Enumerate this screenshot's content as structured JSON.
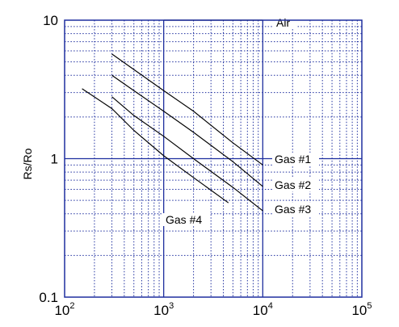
{
  "chart_data": {
    "type": "line",
    "title": "",
    "xlabel": "",
    "ylabel": "Rs/Ro",
    "xscale": "log",
    "yscale": "log",
    "xlim": [
      100,
      100000
    ],
    "ylim": [
      0.1,
      10
    ],
    "grid": true,
    "frame_color": "#1f2f9f",
    "grid_color": "#1f2f9f",
    "line_color": "#000000",
    "x_ticks": [
      {
        "base": "10",
        "exp": "2",
        "value": 100
      },
      {
        "base": "10",
        "exp": "3",
        "value": 1000
      },
      {
        "base": "10",
        "exp": "4",
        "value": 10000
      },
      {
        "base": "10",
        "exp": "5",
        "value": 100000
      }
    ],
    "y_ticks": [
      {
        "label": "0.1",
        "value": 0.1
      },
      {
        "label": "1",
        "value": 1
      },
      {
        "label": "10",
        "value": 10
      }
    ],
    "series": [
      {
        "name": "Air",
        "x": [
          1000,
          10000
        ],
        "y": [
          10,
          10
        ]
      },
      {
        "name": "Gas #1",
        "x": [
          300,
          500,
          1000,
          2000,
          5000,
          10000
        ],
        "y": [
          5.7,
          4.4,
          3.1,
          2.2,
          1.3,
          0.9
        ]
      },
      {
        "name": "Gas #2",
        "x": [
          300,
          500,
          1000,
          2000,
          5000,
          10000
        ],
        "y": [
          4.0,
          3.1,
          2.2,
          1.55,
          0.95,
          0.63
        ]
      },
      {
        "name": "Gas #3",
        "x": [
          300,
          500,
          1000,
          2000,
          5000,
          10000
        ],
        "y": [
          2.8,
          2.05,
          1.45,
          1.0,
          0.62,
          0.42
        ]
      },
      {
        "name": "Gas #4",
        "x": [
          150,
          300,
          500,
          1000,
          2000,
          4500
        ],
        "y": [
          3.2,
          2.3,
          1.6,
          1.05,
          0.73,
          0.48
        ]
      }
    ],
    "annotations": [
      {
        "text": "Air",
        "series": "Air"
      },
      {
        "text": "Gas #1",
        "series": "Gas #1"
      },
      {
        "text": "Gas #2",
        "series": "Gas #2"
      },
      {
        "text": "Gas #3",
        "series": "Gas #3"
      },
      {
        "text": "Gas #4",
        "series": "Gas #4"
      }
    ]
  }
}
